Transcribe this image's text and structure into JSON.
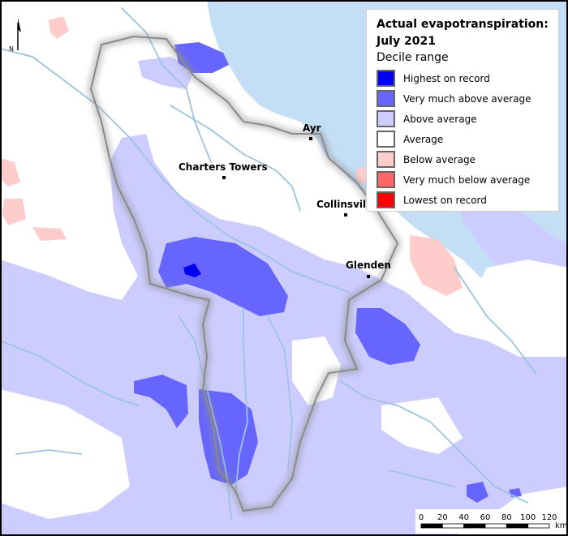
{
  "legend": {
    "title_line1": "Actual evapotranspiration:",
    "title_line2": "July 2021",
    "subtitle": "Decile range",
    "items": [
      {
        "label": "Highest on record",
        "color": "#0000ee"
      },
      {
        "label": "Very much above average",
        "color": "#6666ff"
      },
      {
        "label": "Above average",
        "color": "#ccccff"
      },
      {
        "label": "Average",
        "color": "#ffffff"
      },
      {
        "label": "Below average",
        "color": "#ffcccc"
      },
      {
        "label": "Very much below average",
        "color": "#ff6666"
      },
      {
        "label": "Lowest on record",
        "color": "#ff0000"
      }
    ]
  },
  "north_arrow": {
    "label": "N"
  },
  "towns": {
    "ayr": "Ayr",
    "charters_towers": "Charters Towers",
    "collinsville": "Collinsvil",
    "glenden": "Glenden"
  },
  "scale_bar": {
    "ticks": [
      "0",
      "20",
      "40",
      "60",
      "80",
      "100",
      "120"
    ],
    "unit": "km"
  },
  "colors": {
    "sea": "#c4dff5",
    "river": "#9cc4e0",
    "land": "#ffffff"
  }
}
